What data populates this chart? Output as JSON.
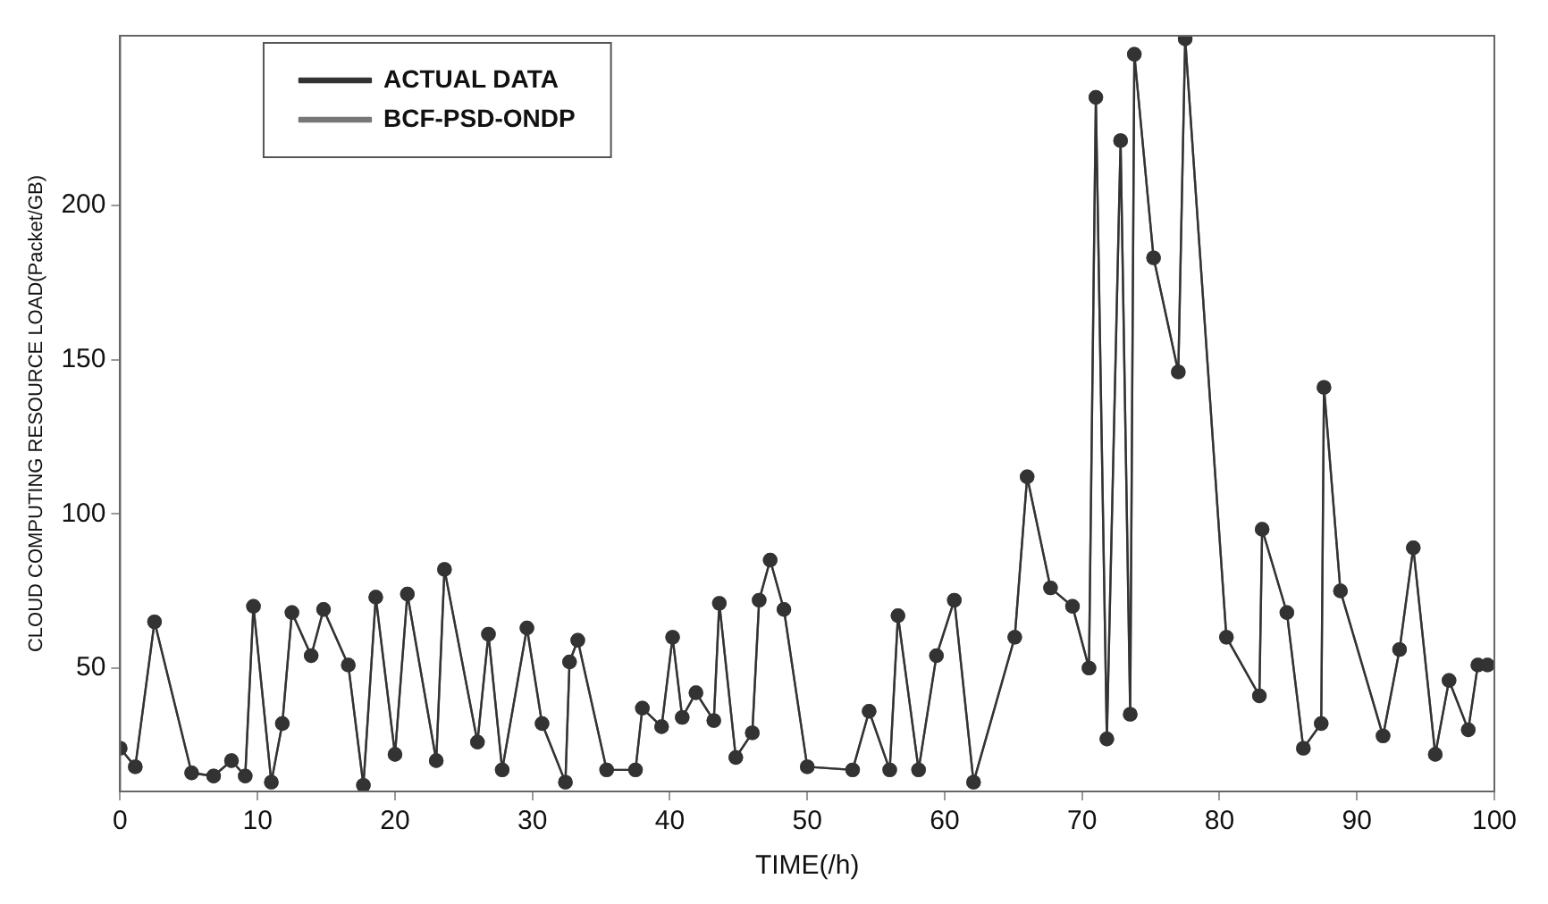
{
  "chart_data": {
    "type": "line",
    "xlabel": "TIME(/h)",
    "ylabel": "CLOUD COMPUTING RESOURCE LOAD(Packet/GB)",
    "x": [
      0,
      1.1,
      2.5,
      5.2,
      6.8,
      8.1,
      9.1,
      9.7,
      11,
      11.8,
      12.5,
      13.9,
      14.8,
      16.6,
      17.7,
      18.6,
      20,
      20.9,
      23,
      23.6,
      26,
      26.8,
      27.8,
      29.6,
      30.7,
      32.4,
      32.7,
      33.3,
      35.4,
      37.5,
      38,
      39.4,
      40.2,
      40.9,
      41.9,
      43.2,
      43.6,
      44.8,
      46,
      46.5,
      47.3,
      48.3,
      50,
      53.3,
      54.5,
      56,
      56.6,
      58.1,
      59.4,
      60.7,
      62.1,
      65.1,
      66,
      67.7,
      69.3,
      70.5,
      71,
      71.8,
      72.8,
      73.5,
      73.8,
      75.2,
      77,
      77.5,
      80.5,
      82.9,
      83.1,
      84.9,
      86.1,
      87.4,
      87.6,
      88.8,
      91.9,
      93.1,
      94.1,
      95.7,
      96.7,
      98.1,
      98.8,
      99.5
    ],
    "series": [
      {
        "name": "ACTUAL DATA",
        "color": "#333333",
        "values": [
          24,
          18,
          65,
          16,
          15,
          20,
          15,
          70,
          13,
          32,
          68,
          54,
          69,
          51,
          12,
          73,
          22,
          74,
          20,
          82,
          26,
          61,
          17,
          63,
          32,
          13,
          52,
          59,
          17,
          17,
          37,
          31,
          60,
          34,
          42,
          33,
          71,
          21,
          29,
          72,
          85,
          69,
          18,
          17,
          36,
          17,
          67,
          17,
          54,
          72,
          13,
          60,
          112,
          76,
          70,
          50,
          235,
          27,
          221,
          35,
          249,
          183,
          146,
          254,
          60,
          41,
          95,
          68,
          24,
          32,
          141,
          75,
          28,
          56,
          89,
          22,
          46,
          30,
          51,
          51
        ]
      },
      {
        "name": "BCF-PSD-ONDP",
        "color": "#777777",
        "values": [
          24,
          18,
          65,
          16,
          15,
          20,
          15,
          70,
          13,
          32,
          68,
          54,
          69,
          51,
          12,
          73,
          22,
          74,
          20,
          82,
          26,
          61,
          17,
          63,
          32,
          13,
          52,
          59,
          17,
          17,
          37,
          31,
          60,
          34,
          42,
          33,
          71,
          21,
          29,
          72,
          85,
          69,
          18,
          17,
          36,
          17,
          67,
          17,
          54,
          72,
          13,
          60,
          112,
          76,
          70,
          50,
          235,
          27,
          221,
          35,
          249,
          183,
          146,
          254,
          60,
          41,
          95,
          68,
          24,
          32,
          141,
          75,
          28,
          56,
          89,
          22,
          46,
          30,
          51,
          51
        ]
      }
    ],
    "xlim": [
      0,
      100
    ],
    "xticks": [
      0,
      10,
      20,
      30,
      40,
      50,
      60,
      70,
      80,
      90,
      100
    ],
    "ylim": [
      10,
      255
    ],
    "yticks": [
      50,
      100,
      150,
      200
    ],
    "grid": false,
    "legend": "top left",
    "marker": "circle",
    "line_style": "solid"
  }
}
